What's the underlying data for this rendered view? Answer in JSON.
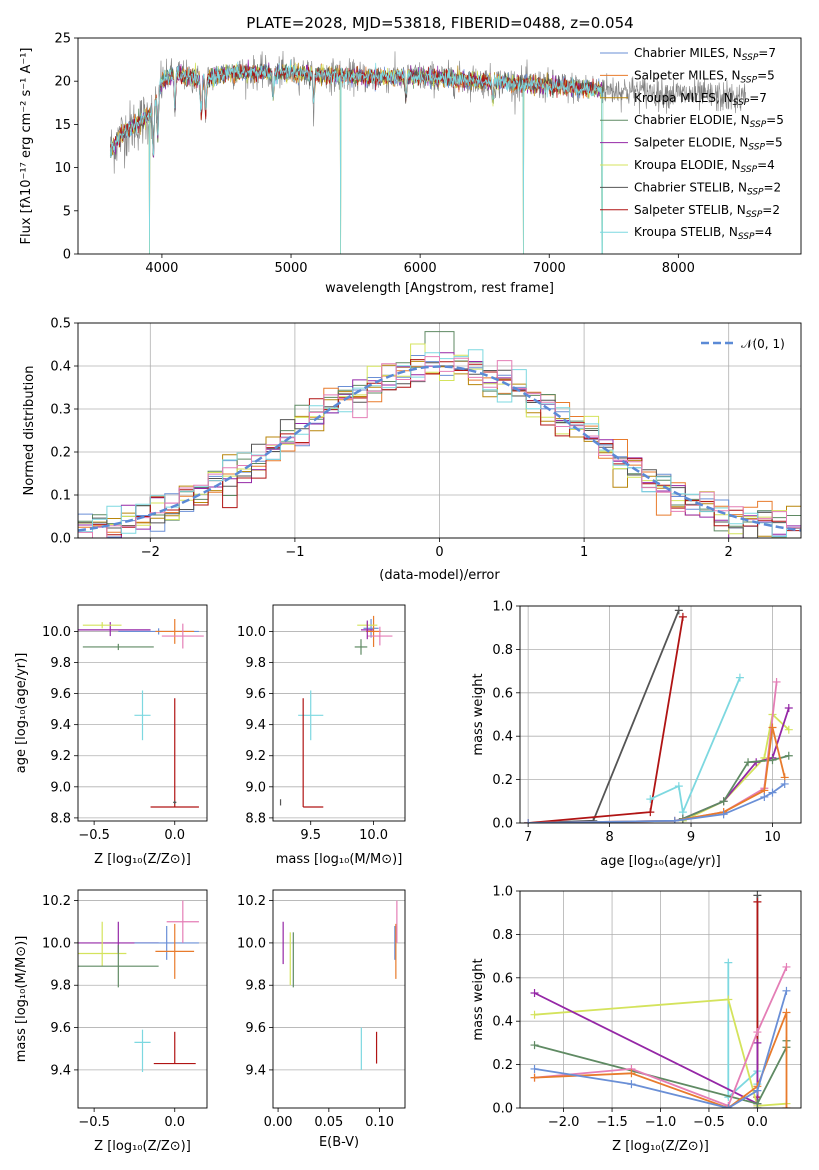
{
  "title": "PLATE=2028, MJD=53818, FIBERID=0488, z=0.054",
  "colors": {
    "chabrier_miles": "#6a8fd6",
    "salpeter_miles": "#e87b2c",
    "kroupa_miles": "#b8860b",
    "chabrier_elodie": "#5f8a63",
    "salpeter_elodie": "#9527a6",
    "kroupa_elodie": "#d4e35c",
    "chabrier_stelib": "#555555",
    "salpeter_stelib": "#b01414",
    "kroupa_stelib": "#7dd8e0",
    "pink": "#e47eb6",
    "data_line": "#808080",
    "gaussian": "#5b8ad6",
    "grid": "#b0b0b0"
  },
  "legend_spectrum": [
    {
      "name": "Chabrier MILES, N",
      "sub": "SSP",
      "tail": "=7",
      "color": "#6a8fd6"
    },
    {
      "name": "Salpeter MILES, N",
      "sub": "SSP",
      "tail": "=5",
      "color": "#e87b2c"
    },
    {
      "name": "Kroupa MILES, N",
      "sub": "SSP",
      "tail": "=7",
      "color": "#b8860b"
    },
    {
      "name": "Chabrier ELODIE, N",
      "sub": "SSP",
      "tail": "=5",
      "color": "#5f8a63"
    },
    {
      "name": "Salpeter ELODIE, N",
      "sub": "SSP",
      "tail": "=5",
      "color": "#9527a6"
    },
    {
      "name": "Kroupa ELODIE, N",
      "sub": "SSP",
      "tail": "=4",
      "color": "#d4e35c"
    },
    {
      "name": "Chabrier STELIB, N",
      "sub": "SSP",
      "tail": "=2",
      "color": "#555555"
    },
    {
      "name": "Salpeter STELIB, N",
      "sub": "SSP",
      "tail": "=2",
      "color": "#b01414"
    },
    {
      "name": "Kroupa STELIB, N",
      "sub": "SSP",
      "tail": "=4",
      "color": "#7dd8e0"
    }
  ],
  "chart_data": [
    {
      "id": "spectrum",
      "type": "line",
      "xlabel": "wavelength [Angstrom, rest frame]",
      "ylabel": "Flux [fλ10⁻¹⁷ erg cm⁻² s⁻¹ A⁻¹]",
      "xlim": [
        3350,
        8950
      ],
      "ylim": [
        0,
        25
      ],
      "xticks": [
        4000,
        5000,
        6000,
        7000,
        8000
      ],
      "yticks": [
        0,
        5,
        10,
        15,
        20,
        25
      ],
      "grid": false,
      "legend": "right",
      "continuum": {
        "x": [
          3600,
          3700,
          3800,
          3900,
          4000,
          4100,
          4300,
          4500,
          5000,
          5500,
          6000,
          6500,
          7000,
          7400,
          7500,
          8000,
          8500
        ],
        "y": [
          12,
          14,
          15,
          16,
          20,
          21,
          20,
          21,
          21,
          20.5,
          20.5,
          20,
          19.5,
          19,
          19,
          18.5,
          18
        ]
      },
      "model_gaps": [
        3905,
        5385,
        6800,
        7410
      ]
    },
    {
      "id": "residual-hist",
      "type": "histogram",
      "xlabel": "(data-model)/error",
      "ylabel": "Normed distribution",
      "xlim": [
        -2.5,
        2.5
      ],
      "ylim": [
        0,
        0.5
      ],
      "xticks": [
        -2,
        -1,
        0,
        1,
        2
      ],
      "yticks": [
        0,
        0.1,
        0.2,
        0.3,
        0.4,
        0.5
      ],
      "grid": true,
      "legend": "top-right",
      "gaussian_label": "𝒩(0, 1)",
      "gaussian": {
        "mean": 0,
        "sigma": 1
      }
    },
    {
      "id": "age-vs-z",
      "type": "errorbar",
      "xlabel": "Z [log₁₀(Z/Z⊙)]",
      "ylabel": "age [log₁₀(age/yr)]",
      "xlim": [
        -0.6,
        0.2
      ],
      "ylim": [
        8.78,
        10.17
      ],
      "xticks": [
        -0.5,
        0.0
      ],
      "yticks": [
        8.8,
        9.0,
        9.2,
        9.4,
        9.6,
        9.8,
        10.0
      ],
      "points": [
        {
          "x": -0.4,
          "xerr": [
            0.25,
            0.25
          ],
          "y": 10.01,
          "yerr": [
            0.04,
            0.05
          ],
          "color": "#9527a6"
        },
        {
          "x": -0.45,
          "xerr": [
            0.12,
            0.12
          ],
          "y": 10.04,
          "yerr": [
            0.02,
            0.02
          ],
          "color": "#d4e35c"
        },
        {
          "x": -0.35,
          "xerr": [
            0.22,
            0.22
          ],
          "y": 9.9,
          "yerr": [
            0.02,
            0.02
          ],
          "color": "#5f8a63"
        },
        {
          "x": -0.1,
          "xerr": [
            0.25,
            0.25
          ],
          "y": 10.0,
          "yerr": [
            0.02,
            0.02
          ],
          "color": "#6a8fd6"
        },
        {
          "x": 0.0,
          "xerr": [
            0.12,
            0.12
          ],
          "y": 10.0,
          "yerr": [
            0.08,
            0.08
          ],
          "color": "#e87b2c"
        },
        {
          "x": 0.05,
          "xerr": [
            0.13,
            0.13
          ],
          "y": 9.97,
          "yerr": [
            0.08,
            0.08
          ],
          "color": "#e47eb6"
        },
        {
          "x": -0.2,
          "xerr": [
            0.05,
            0.05
          ],
          "y": 9.46,
          "yerr": [
            0.16,
            0.16
          ],
          "color": "#7dd8e0"
        },
        {
          "x": 0.0,
          "xerr": [
            0.15,
            0.15
          ],
          "y": 8.87,
          "yerr": [
            0.0,
            0.7
          ],
          "color": "#b01414"
        },
        {
          "x": 0.0,
          "xerr": [
            0.01,
            0.01
          ],
          "y": 8.9,
          "yerr": [
            0.01,
            0.01
          ],
          "color": "#555555"
        }
      ]
    },
    {
      "id": "age-vs-mass",
      "type": "errorbar",
      "xlabel": "mass [log₁₀(M/M⊙)]",
      "ylabel": "",
      "xlim": [
        9.2,
        10.25
      ],
      "ylim": [
        8.78,
        10.17
      ],
      "xticks": [
        9.5,
        10.0
      ],
      "yticks": [
        8.8,
        9.0,
        9.2,
        9.4,
        9.6,
        9.8,
        10.0
      ],
      "points": [
        {
          "x": 9.98,
          "xerr": [
            0.06,
            0.06
          ],
          "y": 10.02,
          "yerr": [
            0.06,
            0.06
          ],
          "color": "#6a8fd6"
        },
        {
          "x": 10.0,
          "xerr": [
            0.06,
            0.06
          ],
          "y": 10.0,
          "yerr": [
            0.1,
            0.1
          ],
          "color": "#e87b2c"
        },
        {
          "x": 10.05,
          "xerr": [
            0.1,
            0.1
          ],
          "y": 9.97,
          "yerr": [
            0.06,
            0.06
          ],
          "color": "#e47eb6"
        },
        {
          "x": 9.95,
          "xerr": [
            0.08,
            0.08
          ],
          "y": 10.04,
          "yerr": [
            0.02,
            0.02
          ],
          "color": "#d4e35c"
        },
        {
          "x": 9.95,
          "xerr": [
            0.05,
            0.05
          ],
          "y": 10.01,
          "yerr": [
            0.06,
            0.06
          ],
          "color": "#9527a6"
        },
        {
          "x": 9.9,
          "xerr": [
            0.05,
            0.05
          ],
          "y": 9.9,
          "yerr": [
            0.05,
            0.05
          ],
          "color": "#5f8a63"
        },
        {
          "x": 9.5,
          "xerr": [
            0.1,
            0.1
          ],
          "y": 9.46,
          "yerr": [
            0.16,
            0.16
          ],
          "color": "#7dd8e0"
        },
        {
          "x": 9.44,
          "xerr": [
            0.0,
            0.16
          ],
          "y": 8.87,
          "yerr": [
            0.0,
            0.7
          ],
          "color": "#b01414"
        },
        {
          "x": 9.26,
          "xerr": [
            0.0,
            0.0
          ],
          "y": 8.9,
          "yerr": [
            0.02,
            0.02
          ],
          "color": "#555555"
        }
      ]
    },
    {
      "id": "massweight-vs-age",
      "type": "line",
      "xlabel": "age [log₁₀(age/yr)]",
      "ylabel": "mass weight",
      "xlim": [
        6.9,
        10.35
      ],
      "ylim": [
        0,
        1
      ],
      "xticks": [
        7,
        8,
        9,
        10
      ],
      "yticks": [
        0.0,
        0.2,
        0.4,
        0.6,
        0.8,
        1.0
      ],
      "grid": true,
      "series": [
        {
          "color": "#555555",
          "x": [
            7.0,
            7.8,
            8.85
          ],
          "y": [
            0.0,
            0.01,
            0.98
          ]
        },
        {
          "color": "#b01414",
          "x": [
            7.0,
            8.5,
            8.9
          ],
          "y": [
            0.0,
            0.05,
            0.95
          ]
        },
        {
          "color": "#7dd8e0",
          "x": [
            8.5,
            8.85,
            8.9,
            9.6
          ],
          "y": [
            0.11,
            0.17,
            0.05,
            0.67
          ]
        },
        {
          "color": "#d4e35c",
          "x": [
            8.9,
            9.4,
            9.9,
            10.0,
            10.2
          ],
          "y": [
            0.01,
            0.1,
            0.3,
            0.5,
            0.43
          ]
        },
        {
          "color": "#9527a6",
          "x": [
            8.9,
            9.4,
            9.8,
            10.0,
            10.2
          ],
          "y": [
            0.02,
            0.1,
            0.28,
            0.3,
            0.53
          ]
        },
        {
          "color": "#5f8a63",
          "x": [
            8.9,
            9.4,
            9.7,
            10.0,
            10.2
          ],
          "y": [
            0.02,
            0.1,
            0.28,
            0.29,
            0.31
          ]
        },
        {
          "color": "#e47eb6",
          "x": [
            7.0,
            8.8,
            9.4,
            9.9,
            10.05
          ],
          "y": [
            0.0,
            0.01,
            0.05,
            0.16,
            0.65
          ]
        },
        {
          "color": "#e87b2c",
          "x": [
            7.0,
            8.8,
            9.4,
            9.9,
            10.0,
            10.15
          ],
          "y": [
            0.0,
            0.01,
            0.05,
            0.15,
            0.44,
            0.21
          ]
        },
        {
          "color": "#6a8fd6",
          "x": [
            7.0,
            8.8,
            9.4,
            9.9,
            10.0,
            10.15
          ],
          "y": [
            0.0,
            0.01,
            0.04,
            0.12,
            0.14,
            0.18
          ]
        }
      ]
    },
    {
      "id": "mass-vs-z",
      "type": "errorbar",
      "xlabel": "Z [log₁₀(Z/Z⊙)]",
      "ylabel": "mass [log₁₀(M/M⊙)]",
      "xlim": [
        -0.6,
        0.2
      ],
      "ylim": [
        9.22,
        10.25
      ],
      "xticks": [
        -0.5,
        0.0
      ],
      "yticks": [
        9.4,
        9.6,
        9.8,
        10.0,
        10.2
      ],
      "points": [
        {
          "x": -0.35,
          "xerr": [
            0.25,
            0.25
          ],
          "y": 10.0,
          "yerr": [
            0.05,
            0.1
          ],
          "color": "#9527a6"
        },
        {
          "x": -0.45,
          "xerr": [
            0.15,
            0.15
          ],
          "y": 9.95,
          "yerr": [
            0.06,
            0.15
          ],
          "color": "#d4e35c"
        },
        {
          "x": -0.35,
          "xerr": [
            0.25,
            0.25
          ],
          "y": 9.89,
          "yerr": [
            0.1,
            0.1
          ],
          "color": "#5f8a63"
        },
        {
          "x": -0.05,
          "xerr": [
            0.2,
            0.2
          ],
          "y": 10.0,
          "yerr": [
            0.08,
            0.08
          ],
          "color": "#6a8fd6"
        },
        {
          "x": 0.0,
          "xerr": [
            0.12,
            0.12
          ],
          "y": 9.96,
          "yerr": [
            0.13,
            0.13
          ],
          "color": "#e87b2c"
        },
        {
          "x": 0.05,
          "xerr": [
            0.1,
            0.1
          ],
          "y": 10.1,
          "yerr": [
            0.1,
            0.1
          ],
          "color": "#e47eb6"
        },
        {
          "x": -0.2,
          "xerr": [
            0.05,
            0.05
          ],
          "y": 9.53,
          "yerr": [
            0.14,
            0.06
          ],
          "color": "#7dd8e0"
        },
        {
          "x": 0.0,
          "xerr": [
            0.13,
            0.13
          ],
          "y": 9.43,
          "yerr": [
            0.0,
            0.15
          ],
          "color": "#b01414"
        },
        {
          "x": 0.0,
          "xerr": [
            0.0,
            0.0
          ],
          "y": 9.26,
          "yerr": [
            0.0,
            0.0
          ],
          "color": "#555555"
        }
      ]
    },
    {
      "id": "mass-vs-ebv",
      "type": "errorbar",
      "xlabel": "E(B-V)",
      "ylabel": "",
      "xlim": [
        -0.005,
        0.125
      ],
      "ylim": [
        9.22,
        10.25
      ],
      "xticks": [
        0.0,
        0.05,
        0.1
      ],
      "yticks": [
        9.4,
        9.6,
        9.8,
        10.0,
        10.2
      ],
      "points": [
        {
          "x": 0.005,
          "xerr": [
            0.0,
            0.0
          ],
          "y": 10.0,
          "yerr": [
            0.1,
            0.1
          ],
          "color": "#9527a6"
        },
        {
          "x": 0.012,
          "xerr": [
            0.0,
            0.0
          ],
          "y": 9.95,
          "yerr": [
            0.15,
            0.1
          ],
          "color": "#d4e35c"
        },
        {
          "x": 0.015,
          "xerr": [
            0.0,
            0.0
          ],
          "y": 9.89,
          "yerr": [
            0.1,
            0.16
          ],
          "color": "#5f8a63"
        },
        {
          "x": 0.115,
          "xerr": [
            0.0,
            0.0
          ],
          "y": 10.0,
          "yerr": [
            0.08,
            0.08
          ],
          "color": "#6a8fd6"
        },
        {
          "x": 0.116,
          "xerr": [
            0.0,
            0.0
          ],
          "y": 9.96,
          "yerr": [
            0.13,
            0.13
          ],
          "color": "#e87b2c"
        },
        {
          "x": 0.117,
          "xerr": [
            0.0,
            0.0
          ],
          "y": 10.1,
          "yerr": [
            0.1,
            0.1
          ],
          "color": "#e47eb6"
        },
        {
          "x": 0.082,
          "xerr": [
            0.0,
            0.0
          ],
          "y": 9.5,
          "yerr": [
            0.1,
            0.1
          ],
          "color": "#7dd8e0"
        },
        {
          "x": 0.097,
          "xerr": [
            0.0,
            0.0
          ],
          "y": 9.5,
          "yerr": [
            0.07,
            0.08
          ],
          "color": "#b01414"
        }
      ]
    },
    {
      "id": "massweight-vs-z",
      "type": "line",
      "xlabel": "Z [log₁₀(Z/Z⊙)]",
      "ylabel": "mass weight",
      "xlim": [
        -2.45,
        0.45
      ],
      "ylim": [
        0,
        1
      ],
      "xticks": [
        -2.0,
        -1.5,
        -1.0,
        -0.5,
        0.0
      ],
      "yticks": [
        0.0,
        0.2,
        0.4,
        0.6,
        0.8,
        1.0
      ],
      "grid": true,
      "series": [
        {
          "color": "#555555",
          "x": [
            0.0,
            0.0
          ],
          "y": [
            0.0,
            0.98
          ]
        },
        {
          "color": "#b01414",
          "x": [
            0.0,
            0.0
          ],
          "y": [
            0.05,
            0.95
          ]
        },
        {
          "color": "#7dd8e0",
          "x": [
            -0.3,
            -0.3,
            0.0,
            0.0
          ],
          "y": [
            0.67,
            0.05,
            0.17,
            0.11
          ]
        },
        {
          "color": "#d4e35c",
          "x": [
            -2.3,
            -0.3,
            0.0,
            0.3
          ],
          "y": [
            0.43,
            0.5,
            0.01,
            0.02
          ]
        },
        {
          "color": "#9527a6",
          "x": [
            -2.3,
            0.0,
            0.0
          ],
          "y": [
            0.53,
            0.02,
            0.3
          ]
        },
        {
          "color": "#5f8a63",
          "x": [
            -2.3,
            0.0,
            0.3,
            0.3
          ],
          "y": [
            0.29,
            0.02,
            0.28,
            0.31
          ]
        },
        {
          "color": "#e47eb6",
          "x": [
            -2.3,
            -1.3,
            -0.3,
            0.0,
            0.3
          ],
          "y": [
            0.14,
            0.18,
            0.01,
            0.35,
            0.65
          ]
        },
        {
          "color": "#e87b2c",
          "x": [
            -2.3,
            -1.3,
            -0.3,
            0.0,
            0.3,
            0.3
          ],
          "y": [
            0.14,
            0.16,
            0.0,
            0.1,
            0.44,
            0.0
          ]
        },
        {
          "color": "#6a8fd6",
          "x": [
            -2.3,
            -1.3,
            -0.3,
            0.0,
            0.3
          ],
          "y": [
            0.18,
            0.11,
            0.0,
            0.08,
            0.54
          ]
        }
      ]
    }
  ]
}
